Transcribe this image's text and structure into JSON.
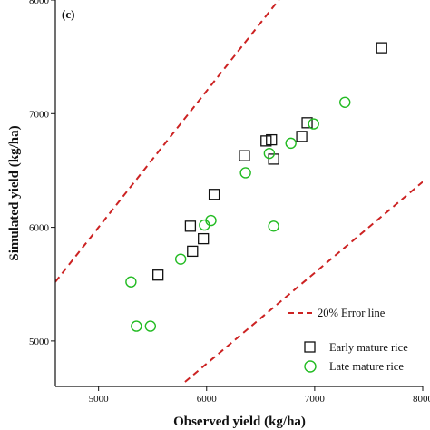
{
  "chart_data": {
    "type": "scatter",
    "panel_label": "(c)",
    "xlabel": "Observed yield (kg/ha)",
    "ylabel": "Simulated yield (kg/ha)",
    "xlim": [
      4600,
      8000
    ],
    "ylim": [
      4600,
      8000
    ],
    "x_ticks": [
      5000,
      6000,
      7000,
      8000
    ],
    "y_ticks": [
      5000,
      6000,
      7000,
      8000
    ],
    "x_tick_labels": [
      "5000",
      "6000",
      "7000",
      "8000"
    ],
    "y_tick_labels": [
      "5000",
      "6000",
      "7000",
      "8000"
    ],
    "grid": false,
    "legend_position": "bottom-right",
    "error_lines": {
      "label": "20% Error line",
      "color": "#cc2222",
      "upper_slope": 1.2,
      "lower_slope": 0.8
    },
    "series": [
      {
        "name": "Early mature rice",
        "marker": "square",
        "color": "#111111",
        "points": [
          [
            5550,
            5580
          ],
          [
            5850,
            6010
          ],
          [
            5870,
            5790
          ],
          [
            5970,
            5900
          ],
          [
            6070,
            6290
          ],
          [
            6350,
            6630
          ],
          [
            6550,
            6760
          ],
          [
            6600,
            6770
          ],
          [
            6620,
            6600
          ],
          [
            6880,
            6800
          ],
          [
            6930,
            6920
          ],
          [
            7620,
            7580
          ]
        ]
      },
      {
        "name": "Late mature rice",
        "marker": "circle",
        "color": "#22bb22",
        "points": [
          [
            5300,
            5520
          ],
          [
            5350,
            5130
          ],
          [
            5480,
            5130
          ],
          [
            5760,
            5720
          ],
          [
            5980,
            6020
          ],
          [
            6040,
            6060
          ],
          [
            6360,
            6480
          ],
          [
            6580,
            6650
          ],
          [
            6620,
            6010
          ],
          [
            6780,
            6740
          ],
          [
            6990,
            6910
          ],
          [
            7280,
            7100
          ]
        ]
      }
    ]
  }
}
